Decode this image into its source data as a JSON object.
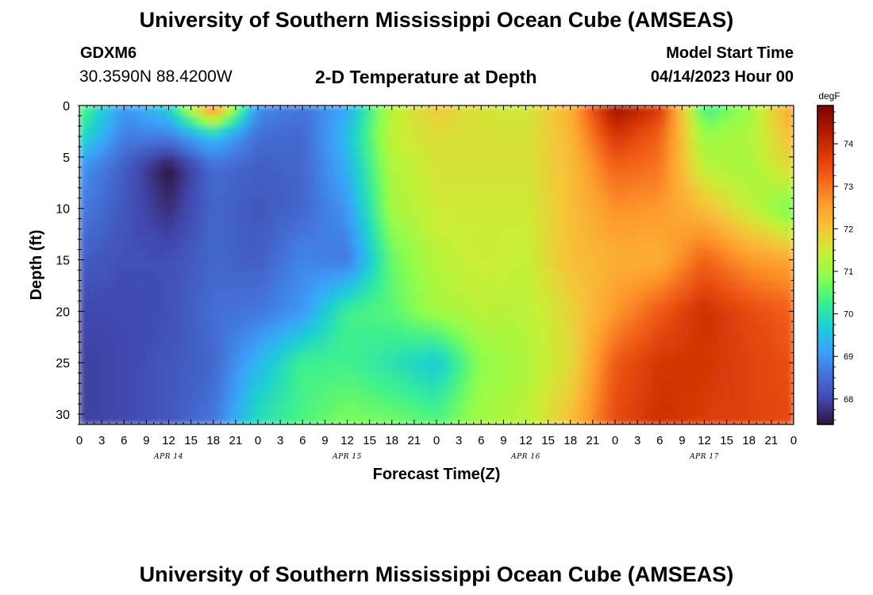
{
  "header": {
    "title": "University of Southern Mississippi Ocean Cube (AMSEAS)",
    "station_id": "GDXM6",
    "coordinates": "30.3590N  88.4200W",
    "subtitle": "2-D Temperature at Depth",
    "model_start_label": "Model Start Time",
    "model_start_value": "04/14/2023 Hour 00"
  },
  "footer": {
    "repeated_title": "University of Southern Mississippi Ocean Cube (AMSEAS)"
  },
  "chart_data": {
    "type": "heatmap",
    "title": "2-D Temperature at Depth",
    "xlabel": "Forecast Time(Z)",
    "ylabel": "Depth (ft)",
    "colorbar_unit": "degF",
    "colorbar_ticks": [
      68,
      69,
      70,
      71,
      72,
      73,
      74
    ],
    "colorbar_range": [
      67.4,
      74.9
    ],
    "colormap": [
      "#30123b",
      "#4146ac",
      "#4472d8",
      "#3ba2fc",
      "#1bcfd4",
      "#3df08e",
      "#8bfe4d",
      "#c8ef34",
      "#f5c53a",
      "#fe9b2d",
      "#f3631a",
      "#d93806",
      "#b01901",
      "#7a0403"
    ],
    "x_range": [
      0,
      96
    ],
    "x_tick_labels": [
      "0",
      "3",
      "6",
      "9",
      "12",
      "15",
      "18",
      "21",
      "0",
      "3",
      "6",
      "9",
      "12",
      "15",
      "18",
      "21",
      "0",
      "3",
      "6",
      "9",
      "12",
      "15",
      "18",
      "21",
      "0",
      "3",
      "6",
      "9",
      "12",
      "15",
      "18",
      "21",
      "0"
    ],
    "date_labels": [
      "APR 14",
      "APR 15",
      "APR 16",
      "APR 17"
    ],
    "date_label_hours": [
      12,
      36,
      60,
      84
    ],
    "y_range": [
      0,
      31
    ],
    "y_ticks": [
      0,
      5,
      10,
      15,
      20,
      25,
      30
    ],
    "hours": [
      0,
      6,
      12,
      18,
      24,
      30,
      36,
      42,
      48,
      54,
      60,
      66,
      72,
      78,
      84,
      90,
      96
    ],
    "depths": [
      0,
      3,
      6,
      10,
      15,
      20,
      25,
      31
    ],
    "temperature": [
      [
        70.6,
        69.0,
        69.8,
        73.2,
        68.9,
        68.6,
        69.2,
        71.3,
        72.0,
        71.6,
        71.5,
        72.3,
        74.6,
        73.8,
        70.2,
        71.0,
        72.6
      ],
      [
        70.0,
        68.7,
        68.7,
        69.5,
        68.5,
        68.4,
        69.5,
        71.4,
        71.7,
        71.6,
        71.6,
        72.2,
        73.8,
        73.2,
        71.0,
        71.2,
        72.2
      ],
      [
        69.0,
        68.3,
        67.4,
        68.5,
        68.3,
        68.4,
        69.3,
        71.2,
        71.6,
        71.6,
        71.6,
        72.1,
        73.2,
        73.0,
        71.3,
        71.1,
        71.8
      ],
      [
        68.7,
        68.2,
        67.7,
        68.4,
        68.2,
        68.4,
        69.0,
        71.1,
        71.5,
        71.5,
        71.5,
        72.1,
        72.7,
        72.6,
        72.1,
        71.4,
        70.6
      ],
      [
        68.3,
        68.1,
        68.1,
        68.4,
        68.3,
        68.8,
        68.6,
        70.6,
        71.3,
        71.5,
        71.4,
        72.1,
        72.3,
        72.3,
        73.2,
        72.6,
        72.4
      ],
      [
        68.0,
        68.0,
        68.1,
        68.5,
        68.6,
        69.0,
        70.3,
        70.5,
        71.1,
        71.3,
        71.3,
        71.8,
        72.6,
        73.3,
        73.9,
        73.5,
        73.2
      ],
      [
        67.9,
        68.0,
        68.2,
        68.4,
        69.4,
        70.3,
        70.3,
        70.0,
        69.6,
        70.9,
        71.2,
        71.7,
        73.3,
        73.8,
        73.8,
        73.6,
        73.4
      ],
      [
        67.9,
        68.0,
        68.2,
        68.6,
        70.0,
        70.4,
        70.8,
        70.7,
        70.5,
        71.1,
        71.3,
        72.1,
        73.5,
        73.9,
        73.7,
        73.6,
        73.5
      ]
    ]
  }
}
